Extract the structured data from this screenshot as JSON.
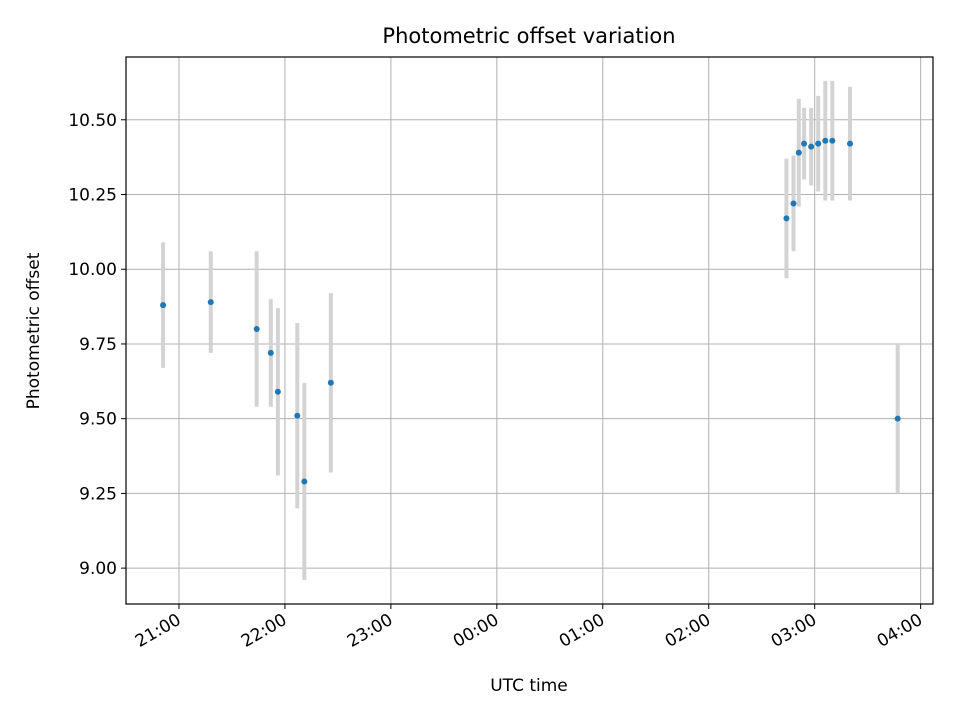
{
  "chart_data": {
    "type": "scatter",
    "title": "Photometric offset variation",
    "xlabel": "UTC time",
    "ylabel": "Photometric offset",
    "x_ticks": [
      "21:00",
      "22:00",
      "23:00",
      "00:00",
      "01:00",
      "02:00",
      "03:00",
      "04:00"
    ],
    "y_ticks": [
      "9.00",
      "9.25",
      "9.50",
      "9.75",
      "10.00",
      "10.25",
      "10.50"
    ],
    "xlim": [
      "20:30",
      "04:07"
    ],
    "ylim": [
      8.88,
      10.71
    ],
    "grid": true,
    "legend": false,
    "point_color": "#1f77b4",
    "errorbar_color": "#d3d3d3",
    "series": [
      {
        "points": [
          {
            "x": "20:51",
            "y": 9.88,
            "yerr": 0.21
          },
          {
            "x": "21:18",
            "y": 9.89,
            "yerr": 0.17
          },
          {
            "x": "21:44",
            "y": 9.8,
            "yerr": 0.26
          },
          {
            "x": "21:52",
            "y": 9.72,
            "yerr": 0.18
          },
          {
            "x": "21:56",
            "y": 9.59,
            "yerr": 0.28
          },
          {
            "x": "22:07",
            "y": 9.51,
            "yerr": 0.31
          },
          {
            "x": "22:11",
            "y": 9.29,
            "yerr": 0.33
          },
          {
            "x": "22:26",
            "y": 9.62,
            "yerr": 0.3
          },
          {
            "x": "02:44",
            "y": 10.17,
            "yerr": 0.2
          },
          {
            "x": "02:48",
            "y": 10.22,
            "yerr": 0.16
          },
          {
            "x": "02:51",
            "y": 10.39,
            "yerr": 0.18
          },
          {
            "x": "02:54",
            "y": 10.42,
            "yerr": 0.12
          },
          {
            "x": "02:58",
            "y": 10.41,
            "yerr": 0.13
          },
          {
            "x": "03:02",
            "y": 10.42,
            "yerr": 0.16
          },
          {
            "x": "03:06",
            "y": 10.43,
            "yerr": 0.2
          },
          {
            "x": "03:10",
            "y": 10.43,
            "yerr": 0.2
          },
          {
            "x": "03:20",
            "y": 10.42,
            "yerr": 0.19
          },
          {
            "x": "03:47",
            "y": 9.5,
            "yerr": 0.25
          }
        ]
      }
    ]
  }
}
